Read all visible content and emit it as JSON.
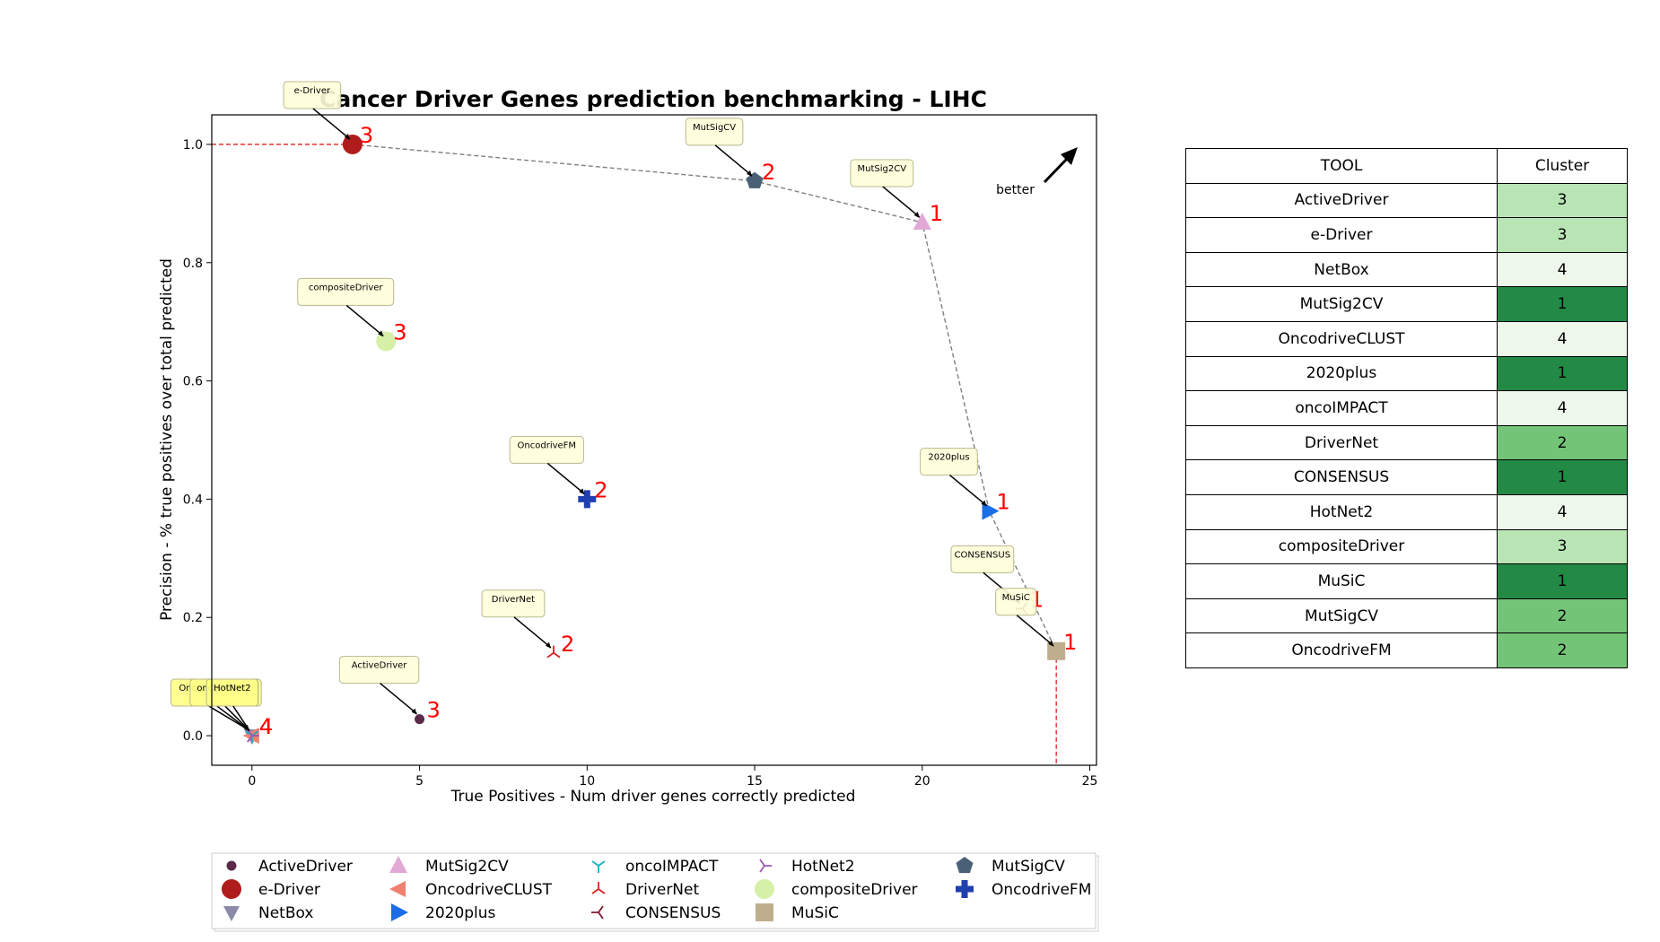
{
  "chart_data": {
    "type": "scatter",
    "title": "Cancer Driver Genes prediction benchmarking - LIHC",
    "xlabel": "True Positives - Num driver genes correctly predicted",
    "ylabel": "Precision - % true positives over total predicted",
    "xlim": [
      -1.2,
      25.2
    ],
    "ylim": [
      -0.05,
      1.05
    ],
    "xticks": [
      0,
      5,
      10,
      15,
      20,
      25
    ],
    "yticks": [
      0.0,
      0.2,
      0.4,
      0.6,
      0.8,
      1.0
    ],
    "xtick_labels": [
      "0",
      "5",
      "10",
      "15",
      "20",
      "25"
    ],
    "ytick_labels": [
      "0.0",
      "0.2",
      "0.4",
      "0.6",
      "0.8",
      "1.0"
    ],
    "grid": false,
    "better_label": "better",
    "legend_position": "below",
    "series": [
      {
        "name": "ActiveDriver",
        "x": 5,
        "y": 0.028,
        "cluster": "3",
        "color": "#5a2a48",
        "marker": "circle-small"
      },
      {
        "name": "e-Driver",
        "x": 3,
        "y": 1.0,
        "cluster": "3",
        "color": "#b01c1c",
        "marker": "circle"
      },
      {
        "name": "NetBox",
        "x": 0,
        "y": 0.0,
        "cluster": "4",
        "color": "#8a8aaa",
        "marker": "triangle-down"
      },
      {
        "name": "MutSig2CV",
        "x": 20,
        "y": 0.868,
        "cluster": "1",
        "color": "#e2a8d6",
        "marker": "triangle-up"
      },
      {
        "name": "OncodriveCLUST",
        "x": 0,
        "y": 0.0,
        "cluster": "4",
        "color": "#f08070",
        "marker": "triangle-left"
      },
      {
        "name": "2020plus",
        "x": 22,
        "y": 0.38,
        "cluster": "1",
        "color": "#1a6ee8",
        "marker": "triangle-right"
      },
      {
        "name": "oncoIMPACT",
        "x": 0,
        "y": 0.0,
        "cluster": "4",
        "color": "#18b0c0",
        "marker": "tri-down"
      },
      {
        "name": "DriverNet",
        "x": 9,
        "y": 0.14,
        "cluster": "2",
        "color": "#e02020",
        "marker": "tri-up"
      },
      {
        "name": "CONSENSUS",
        "x": 23,
        "y": 0.215,
        "cluster": "1",
        "color": "#801830",
        "marker": "tri-left"
      },
      {
        "name": "HotNet2",
        "x": 0,
        "y": 0.0,
        "cluster": "4",
        "color": "#9a5ab0",
        "marker": "tri-right"
      },
      {
        "name": "compositeDriver",
        "x": 4,
        "y": 0.667,
        "cluster": "3",
        "color": "#d6f0a8",
        "marker": "circle"
      },
      {
        "name": "MuSiC",
        "x": 24,
        "y": 0.143,
        "cluster": "1",
        "color": "#bfae8e",
        "marker": "square"
      },
      {
        "name": "MutSigCV",
        "x": 15,
        "y": 0.938,
        "cluster": "2",
        "color": "#4a6076",
        "marker": "pentagon"
      },
      {
        "name": "OncodriveFM",
        "x": 10,
        "y": 0.4,
        "cluster": "2",
        "color": "#1f3fb0",
        "marker": "plus"
      }
    ],
    "pareto_front": [
      [
        3,
        1.0
      ],
      [
        15,
        0.938
      ],
      [
        20,
        0.868
      ],
      [
        22,
        0.38
      ],
      [
        24,
        0.143
      ]
    ],
    "reference_lines": {
      "y_at_best_precision": 1.0,
      "x_at_best_tp": 24
    }
  },
  "table": {
    "headers": [
      "TOOL",
      "Cluster"
    ],
    "rows": [
      {
        "tool": "ActiveDriver",
        "cluster": "3",
        "color": "#b9e4b4"
      },
      {
        "tool": "e-Driver",
        "cluster": "3",
        "color": "#b9e4b4"
      },
      {
        "tool": "NetBox",
        "cluster": "4",
        "color": "#edf8ea"
      },
      {
        "tool": "MutSig2CV",
        "cluster": "1",
        "color": "#228a44"
      },
      {
        "tool": "OncodriveCLUST",
        "cluster": "4",
        "color": "#edf8ea"
      },
      {
        "tool": "2020plus",
        "cluster": "1",
        "color": "#228a44"
      },
      {
        "tool": "oncoIMPACT",
        "cluster": "4",
        "color": "#edf8ea"
      },
      {
        "tool": "DriverNet",
        "cluster": "2",
        "color": "#73c476"
      },
      {
        "tool": "CONSENSUS",
        "cluster": "1",
        "color": "#228a44"
      },
      {
        "tool": "HotNet2",
        "cluster": "4",
        "color": "#edf8ea"
      },
      {
        "tool": "compositeDriver",
        "cluster": "3",
        "color": "#b9e4b4"
      },
      {
        "tool": "MuSiC",
        "cluster": "1",
        "color": "#228a44"
      },
      {
        "tool": "MutSigCV",
        "cluster": "2",
        "color": "#73c476"
      },
      {
        "tool": "OncodriveFM",
        "cluster": "2",
        "color": "#73c476"
      }
    ]
  }
}
